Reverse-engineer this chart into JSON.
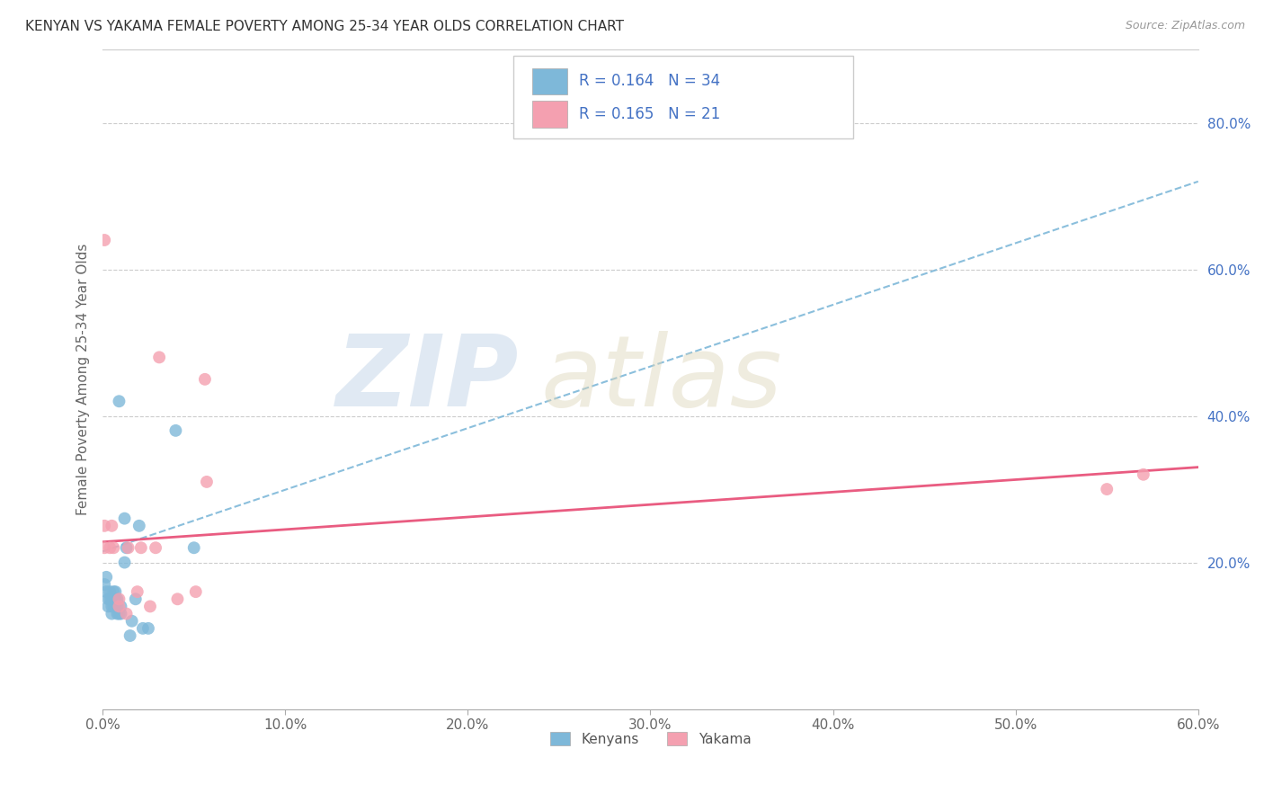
{
  "title": "KENYAN VS YAKAMA FEMALE POVERTY AMONG 25-34 YEAR OLDS CORRELATION CHART",
  "source": "Source: ZipAtlas.com",
  "ylabel": "Female Poverty Among 25-34 Year Olds",
  "xlim": [
    0.0,
    0.6
  ],
  "ylim": [
    0.0,
    0.9
  ],
  "xtick_labels": [
    "0.0%",
    "10.0%",
    "20.0%",
    "30.0%",
    "40.0%",
    "50.0%",
    "60.0%"
  ],
  "xtick_values": [
    0.0,
    0.1,
    0.2,
    0.3,
    0.4,
    0.5,
    0.6
  ],
  "ytick_labels_right": [
    "20.0%",
    "40.0%",
    "60.0%",
    "80.0%"
  ],
  "ytick_values_right": [
    0.2,
    0.4,
    0.6,
    0.8
  ],
  "color_kenyan": "#7EB8D9",
  "color_yakama": "#F4A0B0",
  "color_trendline_kenyan": "#7EB8D9",
  "color_trendline_yakama": "#E8537A",
  "kenyan_x": [
    0.001,
    0.002,
    0.002,
    0.003,
    0.003,
    0.004,
    0.004,
    0.005,
    0.005,
    0.005,
    0.006,
    0.006,
    0.006,
    0.007,
    0.007,
    0.007,
    0.008,
    0.008,
    0.008,
    0.009,
    0.009,
    0.01,
    0.01,
    0.012,
    0.012,
    0.013,
    0.015,
    0.016,
    0.018,
    0.02,
    0.022,
    0.025,
    0.04,
    0.05
  ],
  "kenyan_y": [
    0.17,
    0.16,
    0.18,
    0.14,
    0.15,
    0.15,
    0.16,
    0.13,
    0.14,
    0.15,
    0.14,
    0.15,
    0.16,
    0.14,
    0.15,
    0.16,
    0.13,
    0.14,
    0.15,
    0.13,
    0.42,
    0.13,
    0.14,
    0.2,
    0.26,
    0.22,
    0.1,
    0.12,
    0.15,
    0.25,
    0.11,
    0.11,
    0.38,
    0.22
  ],
  "yakama_x": [
    0.001,
    0.001,
    0.001,
    0.004,
    0.005,
    0.006,
    0.009,
    0.009,
    0.013,
    0.014,
    0.019,
    0.021,
    0.026,
    0.029,
    0.031,
    0.041,
    0.051,
    0.056,
    0.057,
    0.55,
    0.57
  ],
  "yakama_y": [
    0.22,
    0.25,
    0.64,
    0.22,
    0.25,
    0.22,
    0.14,
    0.15,
    0.13,
    0.22,
    0.16,
    0.22,
    0.14,
    0.22,
    0.48,
    0.15,
    0.16,
    0.45,
    0.31,
    0.3,
    0.32
  ],
  "kenyan_trendline": [
    0.0,
    0.6,
    0.215,
    0.72
  ],
  "yakama_trendline": [
    0.0,
    0.6,
    0.228,
    0.33
  ]
}
